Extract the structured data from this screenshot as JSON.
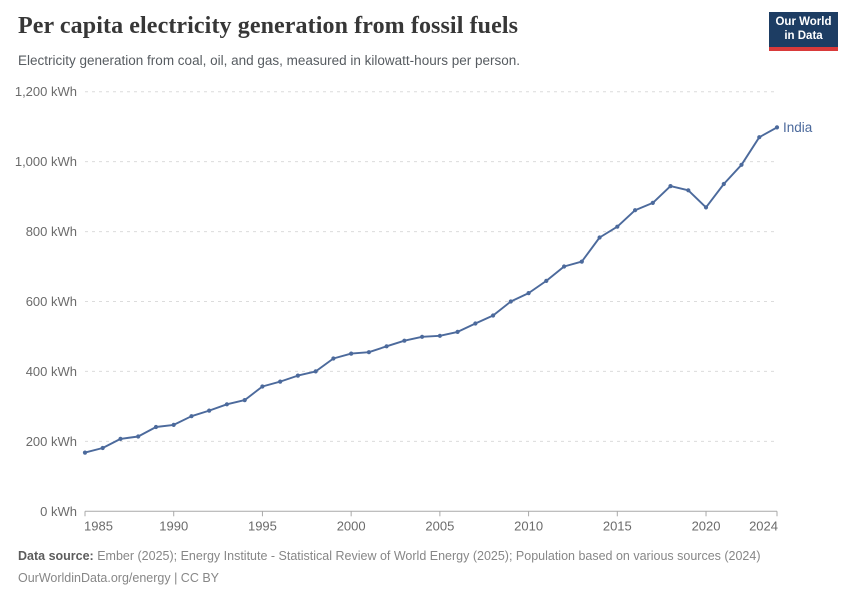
{
  "header": {
    "title": "Per capita electricity generation from fossil fuels",
    "subtitle": "Electricity generation from coal, oil, and gas, measured in kilowatt-hours per person.",
    "logo": {
      "line1": "Our World",
      "line2": "in Data"
    }
  },
  "colors": {
    "series_line": "#4C6A9C",
    "grid": "#dcdcdc",
    "axis": "#a9a9a9",
    "tick_label": "#6b6b6b",
    "logo_navy": "#1d3d63",
    "logo_red": "#d93a3a"
  },
  "chart_data": {
    "type": "line",
    "title": "Per capita electricity generation from fossil fuels",
    "subtitle": "Electricity generation from coal, oil, and gas, measured in kilowatt-hours per person.",
    "unit": "kWh",
    "x": [
      1985,
      1986,
      1987,
      1988,
      1989,
      1990,
      1991,
      1992,
      1993,
      1994,
      1995,
      1996,
      1997,
      1998,
      1999,
      2000,
      2001,
      2002,
      2003,
      2004,
      2005,
      2006,
      2007,
      2008,
      2009,
      2010,
      2011,
      2012,
      2013,
      2014,
      2015,
      2016,
      2017,
      2018,
      2019,
      2020,
      2021,
      2022,
      2023,
      2024
    ],
    "series": [
      {
        "name": "India",
        "color": "#4C6A9C",
        "values": [
          168,
          181,
          207,
          214,
          241,
          247,
          272,
          288,
          306,
          318,
          357,
          371,
          388,
          400,
          437,
          451,
          455,
          472,
          488,
          499,
          502,
          513,
          537,
          560,
          600,
          624,
          659,
          700,
          714,
          783,
          814,
          861,
          882,
          930,
          918,
          869,
          936,
          991,
          1070,
          1098
        ]
      }
    ],
    "xlim": [
      1985,
      2024
    ],
    "ylim": [
      0,
      1200
    ],
    "x_ticks": [
      1985,
      1990,
      1995,
      2000,
      2005,
      2010,
      2015,
      2020,
      2024
    ],
    "y_ticks": [
      0,
      200,
      400,
      600,
      800,
      1000,
      1200
    ],
    "y_tick_labels": [
      "0 kWh",
      "200 kWh",
      "400 kWh",
      "600 kWh",
      "800 kWh",
      "1,000 kWh",
      "1,200 kWh"
    ],
    "grid": "horizontal-dashed",
    "legend_position": "end-of-line-label",
    "end_label": "India"
  },
  "footer": {
    "datasource_label": "Data source:",
    "datasource_text": " Ember (2025); Energy Institute - Statistical Review of World Energy (2025); Population based on various sources (2024)",
    "license_line": "OurWorldinData.org/energy | CC BY"
  }
}
